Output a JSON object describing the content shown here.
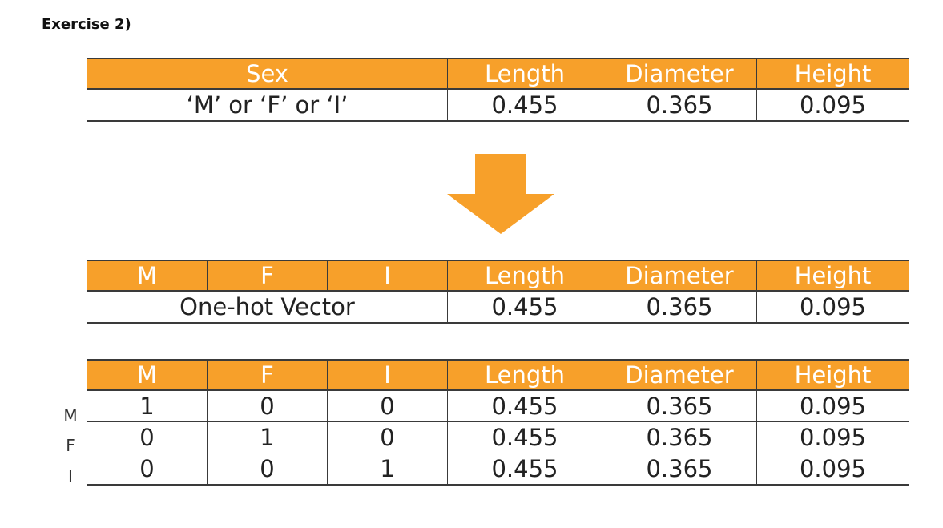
{
  "heading": "Exercise 2)",
  "colors": {
    "header_fill": "#F7A02A",
    "header_text": "#FFFFFF",
    "arrow_fill": "#F7A02A"
  },
  "arrow_icon": "down-arrow-icon",
  "table1": {
    "headers": [
      "Sex",
      "Length",
      "Diameter",
      "Height"
    ],
    "row": [
      "‘M’ or ‘F’ or ‘I’",
      "0.455",
      "0.365",
      "0.095"
    ]
  },
  "table2": {
    "headers": [
      "M",
      "F",
      "I",
      "Length",
      "Diameter",
      "Height"
    ],
    "row": [
      "One-hot Vector",
      "0.455",
      "0.365",
      "0.095"
    ]
  },
  "table3": {
    "headers": [
      "M",
      "F",
      "I",
      "Length",
      "Diameter",
      "Height"
    ],
    "row_labels": [
      "M",
      "F",
      "I"
    ],
    "rows": [
      [
        "1",
        "0",
        "0",
        "0.455",
        "0.365",
        "0.095"
      ],
      [
        "0",
        "1",
        "0",
        "0.455",
        "0.365",
        "0.095"
      ],
      [
        "0",
        "0",
        "1",
        "0.455",
        "0.365",
        "0.095"
      ]
    ]
  }
}
